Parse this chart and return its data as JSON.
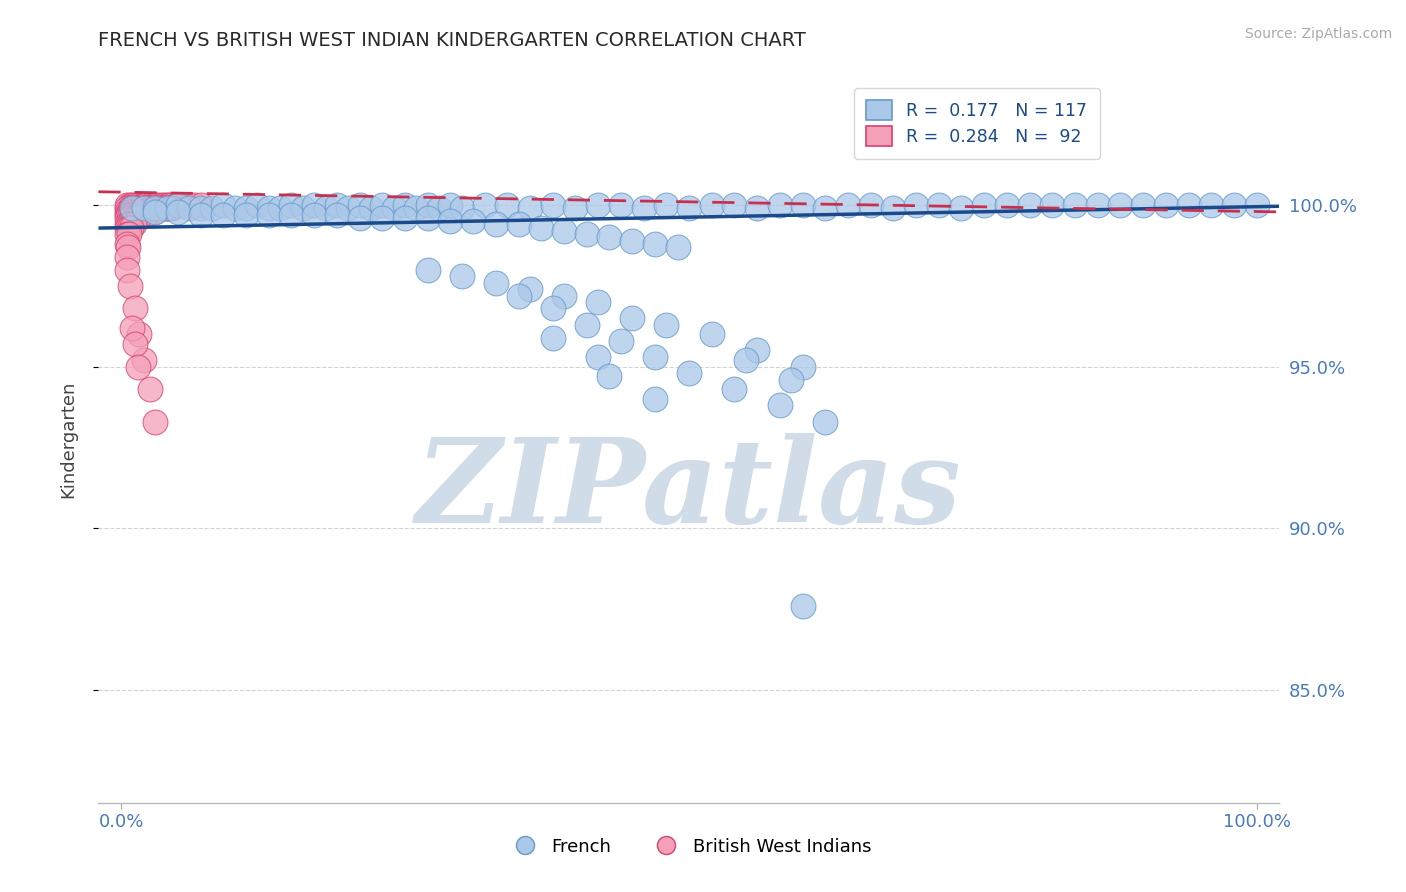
{
  "title": "FRENCH VS BRITISH WEST INDIAN KINDERGARTEN CORRELATION CHART",
  "source": "Source: ZipAtlas.com",
  "ylabel": "Kindergarten",
  "y_ticks": [
    0.85,
    0.9,
    0.95,
    1.0
  ],
  "y_tick_labels": [
    "85.0%",
    "90.0%",
    "95.0%",
    "100.0%"
  ],
  "x_lim": [
    -0.02,
    1.02
  ],
  "y_lim": [
    0.815,
    1.04
  ],
  "french_color": "#aac8e8",
  "french_edge": "#6699cc",
  "bwi_color": "#f4a0b8",
  "bwi_edge": "#d84070",
  "french_R": 0.177,
  "french_N": 117,
  "bwi_R": 0.284,
  "bwi_N": 92,
  "trend_blue": "#1a4a8a",
  "trend_pink": "#c83050",
  "watermark_color": "#d0dce8",
  "title_color": "#2a2a2a",
  "tick_label_color": "#4a7ac0",
  "grid_color": "#c8c8c8",
  "source_color": "#aaaaaa",
  "french_scatter_x": [
    0.01,
    0.02,
    0.03,
    0.04,
    0.05,
    0.06,
    0.07,
    0.08,
    0.09,
    0.1,
    0.11,
    0.12,
    0.13,
    0.14,
    0.15,
    0.16,
    0.17,
    0.18,
    0.19,
    0.2,
    0.21,
    0.22,
    0.23,
    0.24,
    0.25,
    0.26,
    0.27,
    0.28,
    0.29,
    0.3,
    0.32,
    0.34,
    0.36,
    0.38,
    0.4,
    0.42,
    0.44,
    0.46,
    0.48,
    0.5,
    0.52,
    0.54,
    0.56,
    0.58,
    0.6,
    0.62,
    0.64,
    0.66,
    0.68,
    0.7,
    0.72,
    0.74,
    0.76,
    0.78,
    0.8,
    0.82,
    0.84,
    0.86,
    0.88,
    0.9,
    0.92,
    0.94,
    0.96,
    0.98,
    1.0,
    0.03,
    0.05,
    0.07,
    0.09,
    0.11,
    0.13,
    0.15,
    0.17,
    0.19,
    0.21,
    0.23,
    0.25,
    0.27,
    0.29,
    0.31,
    0.33,
    0.35,
    0.37,
    0.39,
    0.41,
    0.43,
    0.45,
    0.47,
    0.49,
    0.27,
    0.3,
    0.33,
    0.36,
    0.39,
    0.42,
    0.45,
    0.48,
    0.52,
    0.56,
    0.6,
    0.35,
    0.38,
    0.41,
    0.44,
    0.47,
    0.5,
    0.54,
    0.58,
    0.62,
    0.55,
    0.59,
    0.6,
    0.38,
    0.42,
    0.43,
    0.47
  ],
  "french_scatter_y": [
    0.999,
    0.999,
    0.999,
    0.999,
    1.0,
    0.999,
    0.999,
    0.999,
    1.0,
    0.999,
    0.999,
    1.0,
    0.999,
    0.999,
    1.0,
    0.999,
    1.0,
    0.999,
    1.0,
    0.999,
    1.0,
    0.999,
    1.0,
    0.999,
    1.0,
    0.999,
    1.0,
    0.999,
    1.0,
    0.999,
    1.0,
    1.0,
    0.999,
    1.0,
    0.999,
    1.0,
    1.0,
    0.999,
    1.0,
    0.999,
    1.0,
    1.0,
    0.999,
    1.0,
    1.0,
    0.999,
    1.0,
    1.0,
    0.999,
    1.0,
    1.0,
    0.999,
    1.0,
    1.0,
    1.0,
    1.0,
    1.0,
    1.0,
    1.0,
    1.0,
    1.0,
    1.0,
    1.0,
    1.0,
    1.0,
    0.998,
    0.998,
    0.997,
    0.997,
    0.997,
    0.997,
    0.997,
    0.997,
    0.997,
    0.996,
    0.996,
    0.996,
    0.996,
    0.995,
    0.995,
    0.994,
    0.994,
    0.993,
    0.992,
    0.991,
    0.99,
    0.989,
    0.988,
    0.987,
    0.98,
    0.978,
    0.976,
    0.974,
    0.972,
    0.97,
    0.965,
    0.963,
    0.96,
    0.955,
    0.95,
    0.972,
    0.968,
    0.963,
    0.958,
    0.953,
    0.948,
    0.943,
    0.938,
    0.933,
    0.952,
    0.946,
    0.876,
    0.959,
    0.953,
    0.947,
    0.94
  ],
  "bwi_scatter_x": [
    0.005,
    0.008,
    0.01,
    0.012,
    0.015,
    0.018,
    0.02,
    0.022,
    0.025,
    0.028,
    0.03,
    0.032,
    0.035,
    0.038,
    0.04,
    0.042,
    0.045,
    0.048,
    0.05,
    0.055,
    0.06,
    0.065,
    0.07,
    0.005,
    0.008,
    0.01,
    0.012,
    0.015,
    0.018,
    0.02,
    0.022,
    0.025,
    0.028,
    0.03,
    0.032,
    0.035,
    0.038,
    0.04,
    0.042,
    0.045,
    0.005,
    0.007,
    0.009,
    0.011,
    0.013,
    0.015,
    0.017,
    0.019,
    0.021,
    0.023,
    0.025,
    0.027,
    0.029,
    0.005,
    0.006,
    0.008,
    0.01,
    0.012,
    0.014,
    0.016,
    0.018,
    0.02,
    0.022,
    0.005,
    0.007,
    0.009,
    0.011,
    0.013,
    0.015,
    0.005,
    0.007,
    0.009,
    0.011,
    0.005,
    0.007,
    0.009,
    0.005,
    0.007,
    0.005,
    0.006,
    0.005,
    0.005,
    0.008,
    0.012,
    0.016,
    0.02,
    0.025,
    0.03,
    0.01,
    0.012,
    0.015
  ],
  "bwi_scatter_y": [
    1.0,
    1.0,
    1.0,
    1.0,
    1.0,
    1.0,
    1.0,
    1.0,
    1.0,
    1.0,
    1.0,
    1.0,
    1.0,
    1.0,
    1.0,
    1.0,
    1.0,
    1.0,
    1.0,
    1.0,
    1.0,
    1.0,
    1.0,
    0.999,
    0.999,
    0.999,
    0.999,
    0.999,
    0.999,
    0.999,
    0.999,
    0.999,
    0.999,
    0.999,
    0.999,
    0.999,
    0.999,
    0.999,
    0.999,
    0.999,
    0.998,
    0.998,
    0.998,
    0.998,
    0.998,
    0.998,
    0.998,
    0.998,
    0.998,
    0.998,
    0.998,
    0.998,
    0.998,
    0.997,
    0.997,
    0.997,
    0.997,
    0.997,
    0.997,
    0.997,
    0.997,
    0.997,
    0.997,
    0.996,
    0.996,
    0.996,
    0.996,
    0.996,
    0.996,
    0.994,
    0.994,
    0.994,
    0.994,
    0.993,
    0.993,
    0.993,
    0.991,
    0.991,
    0.988,
    0.987,
    0.984,
    0.98,
    0.975,
    0.968,
    0.96,
    0.952,
    0.943,
    0.933,
    0.962,
    0.957,
    0.95
  ]
}
